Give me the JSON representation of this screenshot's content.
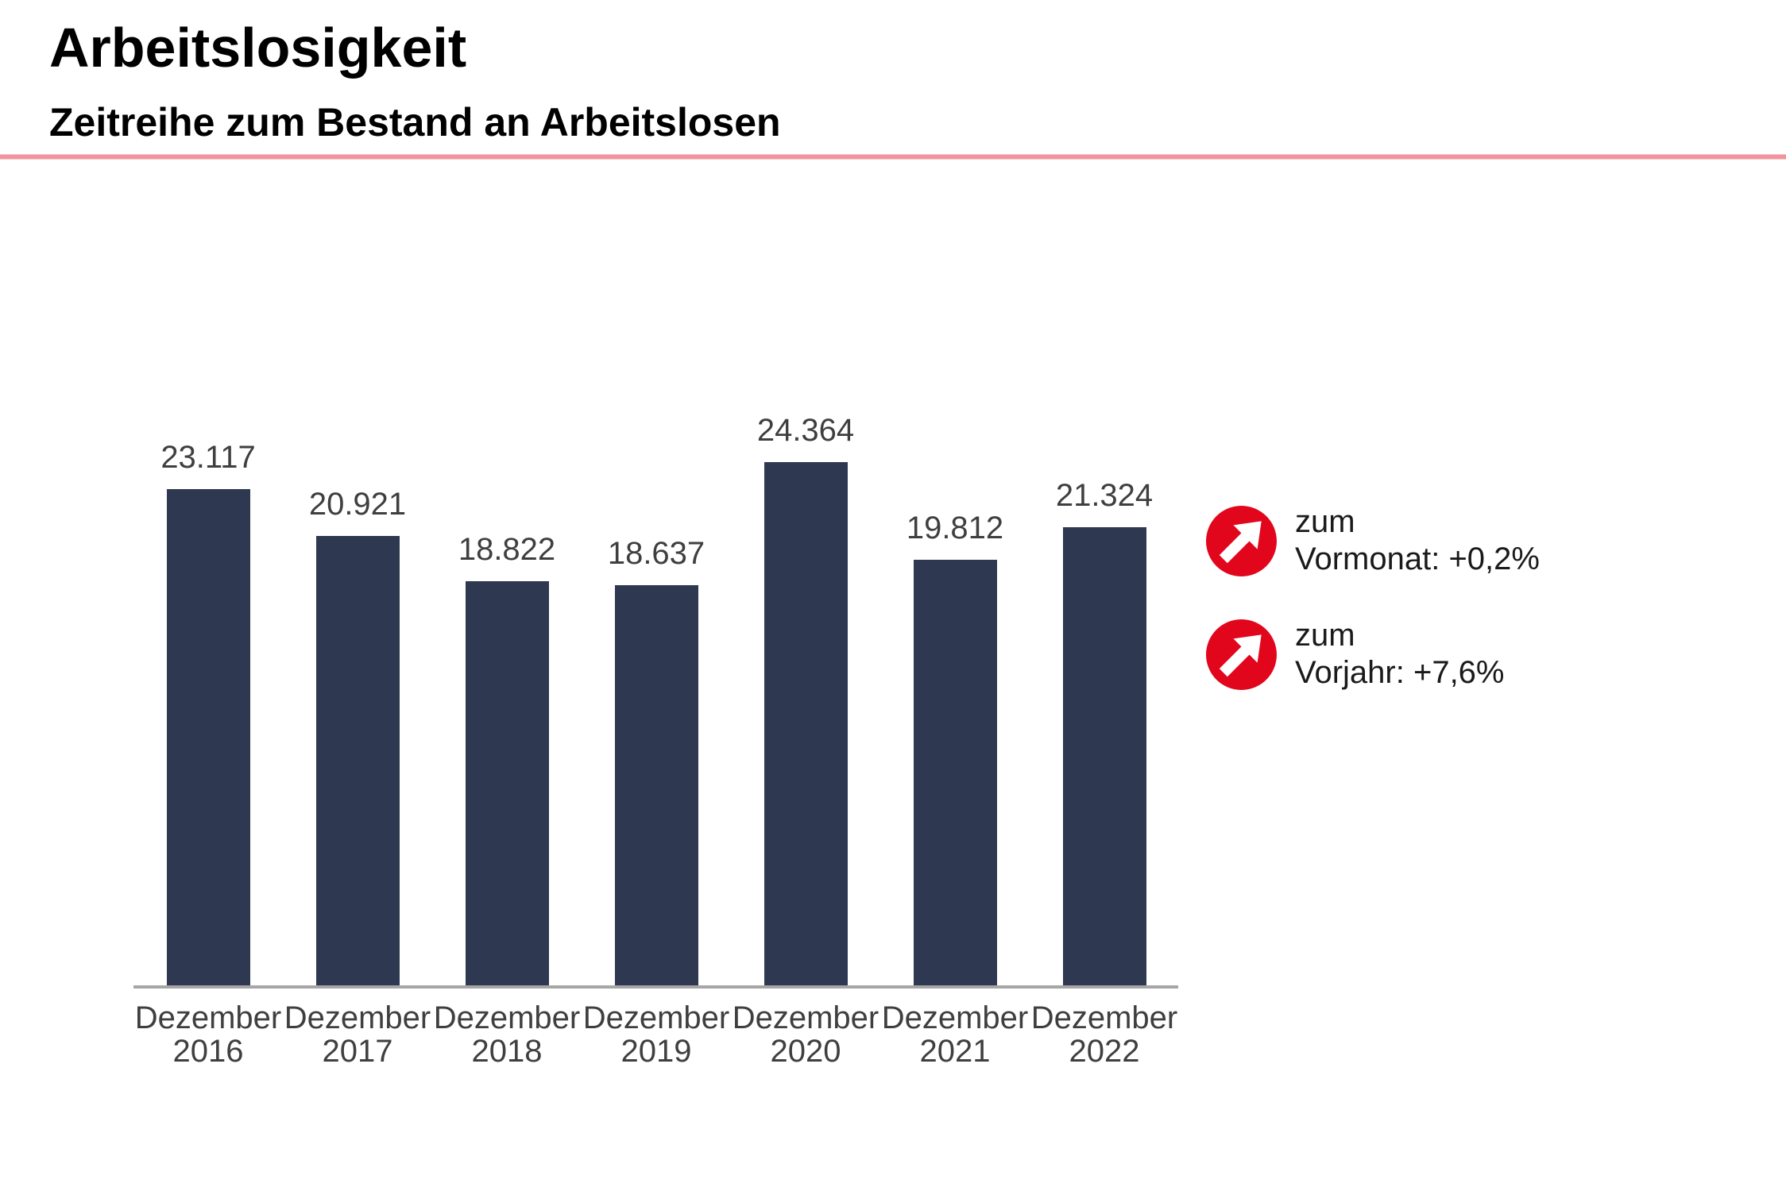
{
  "header": {
    "title": "Arbeitslosigkeit",
    "subtitle": "Zeitreihe zum Bestand an Arbeitslosen"
  },
  "colors": {
    "bar": "#2e3850",
    "accent_red": "#e2061c",
    "divider_pink": "#f0949e",
    "axis_line": "#a6a6a6",
    "label_text": "#3f3f3f"
  },
  "chart_data": {
    "type": "bar",
    "title": "Arbeitslosigkeit",
    "subtitle": "Zeitreihe zum Bestand an Arbeitslosen",
    "categories": [
      "Dezember 2016",
      "Dezember 2017",
      "Dezember 2018",
      "Dezember 2019",
      "Dezember 2020",
      "Dezember 2021",
      "Dezember 2022"
    ],
    "values": [
      23117,
      20921,
      18822,
      18637,
      24364,
      19812,
      21324
    ],
    "value_labels": [
      "23.117",
      "20.921",
      "18.822",
      "18.637",
      "24.364",
      "19.812",
      "21.324"
    ],
    "xlabel": "",
    "ylabel": "",
    "ylim": [
      0,
      25000
    ],
    "grid": false,
    "bar_color": "#2e3850",
    "legend_position": "right"
  },
  "legend": {
    "items": [
      {
        "icon": "trend-up-arrow-icon",
        "line1": "zum",
        "line2": "Vormonat: +0,2%"
      },
      {
        "icon": "trend-up-arrow-icon",
        "line1": "zum",
        "line2": "Vorjahr: +7,6%"
      }
    ]
  }
}
